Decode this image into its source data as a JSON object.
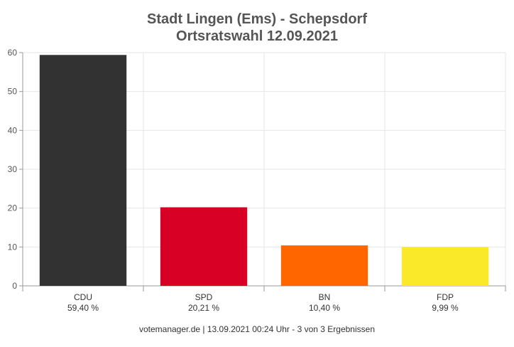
{
  "chart_data": {
    "type": "bar",
    "title": "Stadt Lingen (Ems) - Schepsdorf",
    "subtitle": "Ortsratswahl 12.09.2021",
    "categories": [
      "CDU",
      "SPD",
      "BN",
      "FDP"
    ],
    "category_sublabels": [
      "59,40 %",
      "20,21 %",
      "10,40 %",
      "9,99 %"
    ],
    "values": [
      59.4,
      20.21,
      10.4,
      9.99
    ],
    "colors": [
      "#323232",
      "#d90026",
      "#ff6600",
      "#f9e928"
    ],
    "ylim": [
      0,
      60
    ],
    "yticks": [
      0,
      10,
      20,
      30,
      40,
      50,
      60
    ],
    "grid": true,
    "legend": "none"
  },
  "footer": "votemanager.de | 13.09.2021 00:24 Uhr - 3 von 3 Ergebnissen"
}
